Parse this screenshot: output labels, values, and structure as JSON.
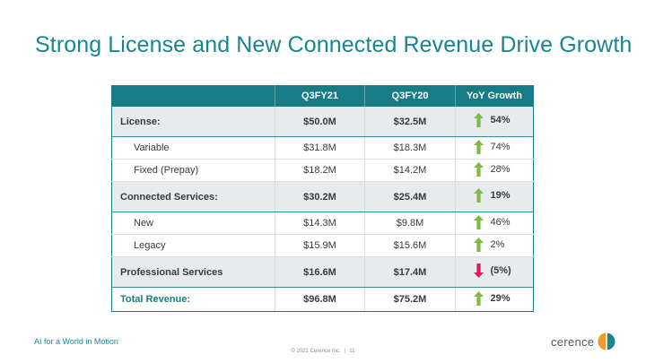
{
  "slide": {
    "title": "Strong License and New Connected Revenue Drive Growth",
    "tagline": "AI for a World in Motion",
    "copyright": "© 2021 Cerence Inc.",
    "page_number": "11",
    "logo_text": "cerence"
  },
  "table": {
    "headers": [
      "",
      "Q3FY21",
      "Q3FY20",
      "YoY Growth"
    ],
    "rows": [
      {
        "label": "License:",
        "q3fy21": "$50.0M",
        "q3fy20": "$32.5M",
        "yoy": "54%",
        "direction": "up",
        "style": "section"
      },
      {
        "label": "Variable",
        "q3fy21": "$31.8M",
        "q3fy20": "$18.3M",
        "yoy": "74%",
        "direction": "up",
        "style": "sub"
      },
      {
        "label": "Fixed (Prepay)",
        "q3fy21": "$18.2M",
        "q3fy20": "$14.2M",
        "yoy": "28%",
        "direction": "up",
        "style": "sub"
      },
      {
        "label": "Connected Services:",
        "q3fy21": "$30.2M",
        "q3fy20": "$25.4M",
        "yoy": "19%",
        "direction": "up",
        "style": "section"
      },
      {
        "label": "New",
        "q3fy21": "$14.3M",
        "q3fy20": "$9.8M",
        "yoy": "46%",
        "direction": "up",
        "style": "sub"
      },
      {
        "label": "Legacy",
        "q3fy21": "$15.9M",
        "q3fy20": "$15.6M",
        "yoy": "2%",
        "direction": "up",
        "style": "sub"
      },
      {
        "label": "Professional Services",
        "q3fy21": "$16.6M",
        "q3fy20": "$17.4M",
        "yoy": "(5%)",
        "direction": "down",
        "style": "section"
      },
      {
        "label": "Total Revenue:",
        "q3fy21": "$96.8M",
        "q3fy20": "$75.2M",
        "yoy": "29%",
        "direction": "up",
        "style": "total"
      }
    ]
  },
  "colors": {
    "accent": "#17868f",
    "header_bg": "#177c85",
    "up_arrow": "#7dbb42",
    "down_arrow": "#d81b60",
    "section_bg": "#e7ebee"
  },
  "icons": {
    "up": "up-arrow-icon",
    "down": "down-arrow-icon",
    "logo": "cerence-logo-icon"
  }
}
